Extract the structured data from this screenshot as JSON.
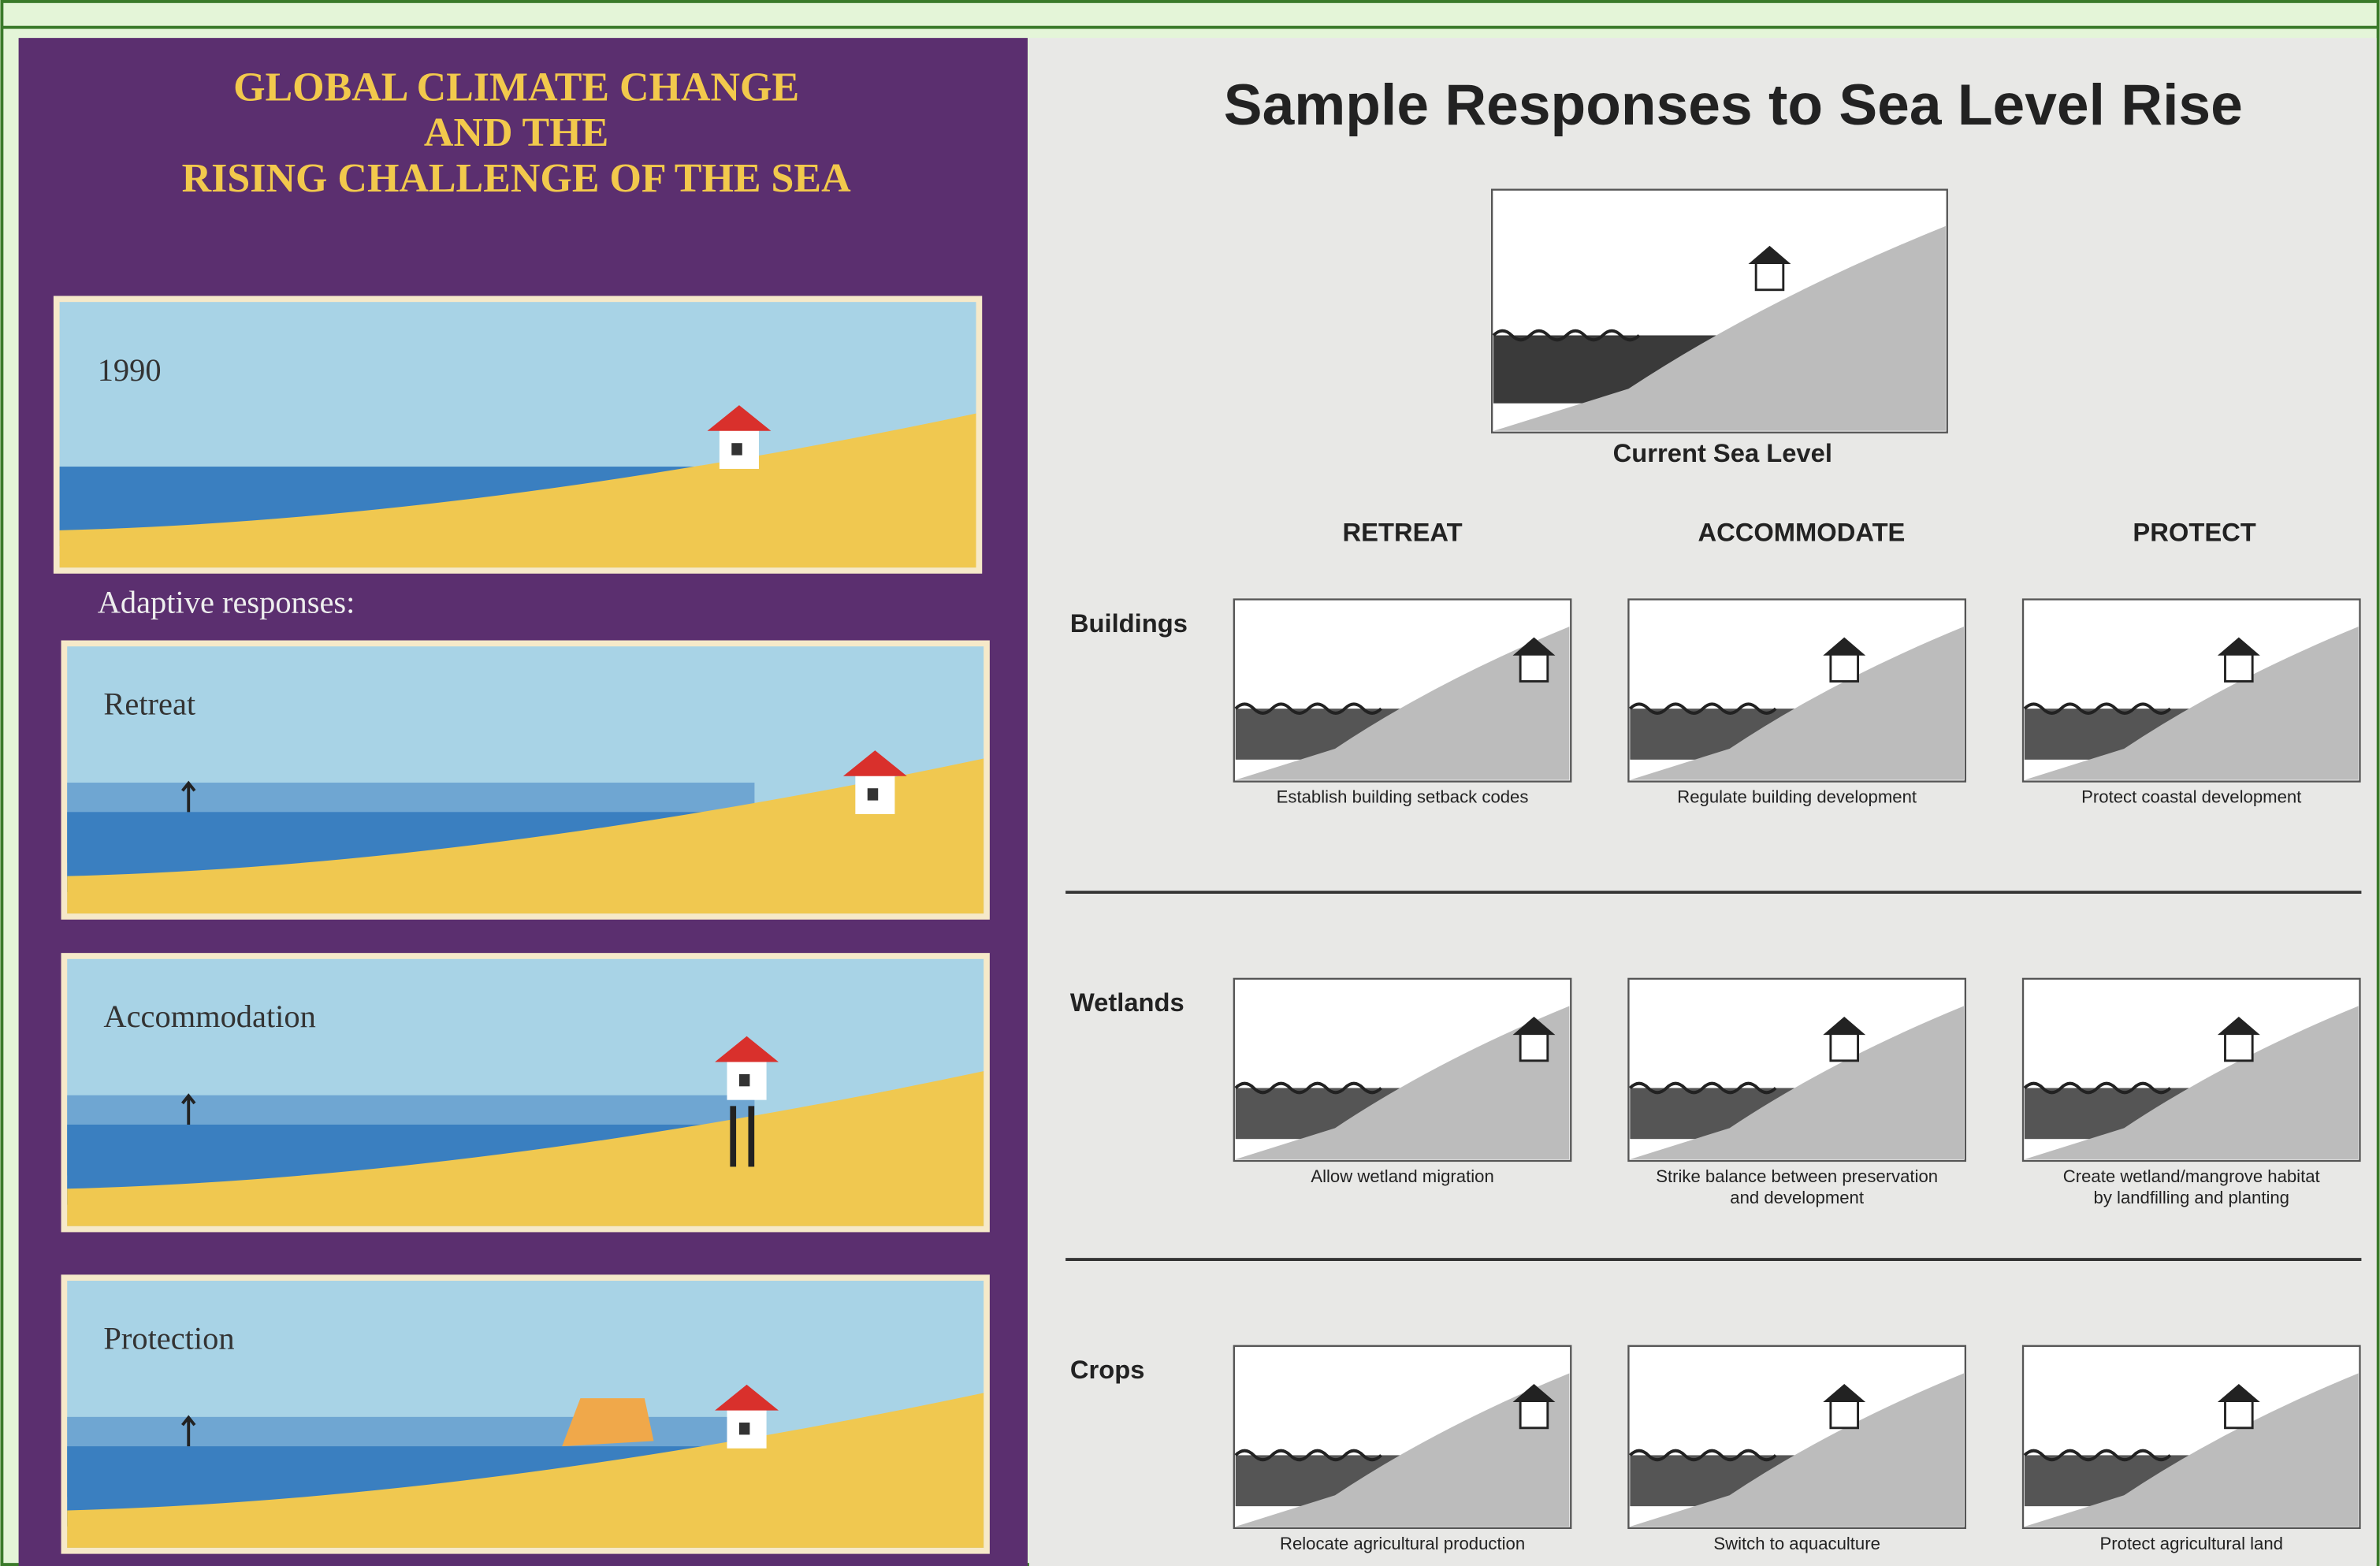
{
  "left": {
    "title": [
      "GLOBAL CLIMATE CHANGE",
      "AND THE",
      "RISING CHALLENGE OF THE SEA"
    ],
    "baseline_label": "1990",
    "subtitle": "Adaptive responses:",
    "panels": [
      "Retreat",
      "Accommodation",
      "Protection"
    ]
  },
  "right": {
    "title": "Sample Responses to Sea Level Rise",
    "current_label": "Current Sea Level",
    "columns": [
      "RETREAT",
      "ACCOMMODATE",
      "PROTECT"
    ],
    "rows": [
      {
        "label": "Buildings",
        "captions": [
          [
            "Establish building setback codes"
          ],
          [
            "Regulate building development"
          ],
          [
            "Protect coastal development"
          ]
        ]
      },
      {
        "label": "Wetlands",
        "captions": [
          [
            "Allow wetland migration"
          ],
          [
            "Strike balance between preservation",
            "and development"
          ],
          [
            "Create wetland/mangrove habitat",
            "by landfilling and planting"
          ]
        ]
      },
      {
        "label": "Crops",
        "captions": [
          [
            "Relocate agricultural production"
          ],
          [
            "Switch to aquaculture"
          ],
          [
            "Protect agricultural land"
          ]
        ]
      }
    ]
  }
}
